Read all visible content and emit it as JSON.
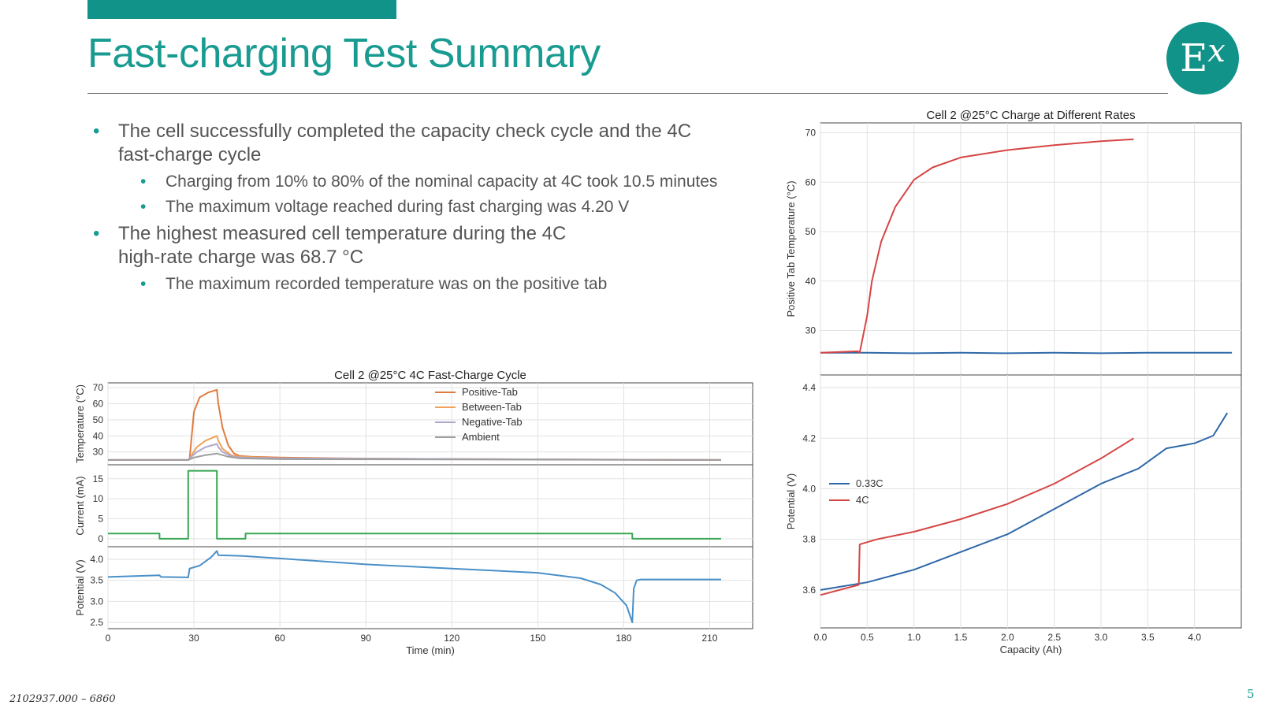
{
  "header": {
    "title": "Fast-charging Test Summary"
  },
  "logo": {
    "main": "E",
    "sup": "x"
  },
  "bullets": [
    {
      "text": "The cell successfully completed the capacity check cycle and the 4C fast-charge cycle"
    },
    {
      "text": "Charging from 10% to 80% of the nominal capacity at 4C took 10.5 minutes"
    },
    {
      "text": "The maximum voltage reached during fast charging was 4.20 V"
    },
    {
      "text": "The highest measured cell temperature during the 4C high-rate charge was 68.7 °C"
    },
    {
      "text": "The maximum recorded temperature was on the positive tab"
    }
  ],
  "footer": {
    "doc_id": "2102937.000 – 6860",
    "page": "5"
  },
  "colors": {
    "accent": "#189b91",
    "positive_tab": "#e07b3f",
    "between_tab": "#f0a25a",
    "negative_tab": "#b0a8cc",
    "ambient": "#9e9e9e",
    "current": "#3aa655",
    "potential": "#4a90c8",
    "rate_033": "#2e68a8",
    "rate_4c": "#d64545"
  },
  "chart_data": [
    {
      "type": "line",
      "title": "Cell 2 @25°C 4C Fast-Charge Cycle",
      "xlabel": "Time (min)",
      "xlim": [
        0,
        225
      ],
      "xticks": [
        "0",
        "30",
        "60",
        "90",
        "120",
        "150",
        "180",
        "210"
      ],
      "panels": [
        {
          "ylabel": "Temperature (°C)",
          "ylim": [
            22,
            73
          ],
          "yticks": [
            "30",
            "40",
            "50",
            "60",
            "70"
          ],
          "legend": [
            "Positive-Tab",
            "Between-Tab",
            "Negative-Tab",
            "Ambient"
          ],
          "series": [
            {
              "name": "Positive-Tab",
              "x": [
                0,
                28,
                28.5,
                30,
                32,
                35,
                38,
                38.5,
                40,
                42,
                44,
                46,
                50,
                60,
                80,
                120,
                214
              ],
              "y": [
                25,
                25,
                26,
                55,
                64,
                67,
                68.7,
                60,
                45,
                34,
                29,
                27.5,
                27,
                26.5,
                26,
                25.5,
                25
              ]
            },
            {
              "name": "Between-Tab",
              "x": [
                0,
                28,
                28.5,
                31,
                34,
                38,
                38.5,
                40,
                43,
                46,
                60,
                214
              ],
              "y": [
                25,
                25,
                26,
                33,
                37,
                40,
                37,
                32,
                28,
                27,
                26,
                25
              ]
            },
            {
              "name": "Negative-Tab",
              "x": [
                0,
                28,
                28.5,
                31,
                34,
                38,
                38.5,
                40,
                43,
                46,
                60,
                214
              ],
              "y": [
                25,
                25,
                26,
                30,
                33,
                35,
                33,
                30,
                27.5,
                26.5,
                26,
                25
              ]
            },
            {
              "name": "Ambient",
              "x": [
                0,
                28,
                30,
                34,
                38,
                42,
                46,
                60,
                214
              ],
              "y": [
                25,
                25,
                26.5,
                28,
                29,
                27,
                26,
                25.5,
                25
              ]
            }
          ]
        },
        {
          "ylabel": "Current (mA)",
          "ylim": [
            -2,
            18.5
          ],
          "yticks": [
            "0",
            "5",
            "10",
            "15"
          ],
          "series": [
            {
              "name": "Current",
              "x": [
                0,
                18,
                18,
                28,
                28,
                38,
                38,
                48,
                48,
                183,
                183,
                214
              ],
              "y": [
                1.3,
                1.3,
                0,
                0,
                17,
                17,
                0,
                0,
                1.3,
                1.3,
                0,
                0
              ]
            }
          ]
        },
        {
          "ylabel": "Potential (V)",
          "ylim": [
            2.35,
            4.3
          ],
          "yticks": [
            "2.5",
            "3.0",
            "3.5",
            "4.0"
          ],
          "series": [
            {
              "name": "Potential",
              "x": [
                0,
                18,
                18.5,
                28,
                28.5,
                32,
                36,
                38,
                38.5,
                47,
                60,
                90,
                120,
                150,
                165,
                172,
                177,
                181,
                183,
                183.5,
                184.5,
                186,
                214
              ],
              "y": [
                3.58,
                3.62,
                3.58,
                3.57,
                3.78,
                3.85,
                4.05,
                4.2,
                4.1,
                4.08,
                4.02,
                3.88,
                3.78,
                3.68,
                3.55,
                3.4,
                3.2,
                2.9,
                2.5,
                3.3,
                3.5,
                3.52,
                3.52
              ]
            }
          ]
        }
      ]
    },
    {
      "type": "line",
      "title": "Cell 2 @25°C Charge at Different Rates",
      "xlabel": "Capacity (Ah)",
      "xlim": [
        0,
        4.5
      ],
      "xticks": [
        "0.0",
        "0.5",
        "1.0",
        "1.5",
        "2.0",
        "2.5",
        "3.0",
        "3.5",
        "4.0"
      ],
      "panels": [
        {
          "ylabel": "Positive Tab Temperature (°C)",
          "ylim": [
            21,
            72
          ],
          "yticks": [
            "30",
            "40",
            "50",
            "60",
            "70"
          ],
          "series": [
            {
              "name": "0.33C",
              "x": [
                0,
                0.5,
                1.0,
                1.5,
                2.0,
                2.5,
                3.0,
                3.5,
                4.0,
                4.4
              ],
              "y": [
                25.5,
                25.5,
                25.4,
                25.5,
                25.4,
                25.5,
                25.4,
                25.5,
                25.5,
                25.5
              ]
            },
            {
              "name": "4C",
              "x": [
                0,
                0.4,
                0.42,
                0.5,
                0.55,
                0.65,
                0.8,
                1.0,
                1.2,
                1.5,
                2.0,
                2.5,
                3.0,
                3.35
              ],
              "y": [
                25.5,
                25.8,
                25.5,
                33,
                40,
                48,
                55,
                60.5,
                63,
                65,
                66.5,
                67.5,
                68.3,
                68.7
              ]
            }
          ]
        },
        {
          "ylabel": "Potential (V)",
          "ylim": [
            3.45,
            4.45
          ],
          "yticks": [
            "3.6",
            "3.8",
            "4.0",
            "4.2",
            "4.4"
          ],
          "legend": [
            "0.33C",
            "4C"
          ],
          "series": [
            {
              "name": "0.33C",
              "x": [
                0,
                0.5,
                1.0,
                1.5,
                2.0,
                2.5,
                3.0,
                3.4,
                3.7,
                4.0,
                4.2,
                4.35
              ],
              "y": [
                3.6,
                3.63,
                3.68,
                3.75,
                3.82,
                3.92,
                4.02,
                4.08,
                4.16,
                4.18,
                4.21,
                4.3
              ]
            },
            {
              "name": "4C",
              "x": [
                0,
                0.41,
                0.42,
                0.6,
                1.0,
                1.5,
                2.0,
                2.5,
                3.0,
                3.35
              ],
              "y": [
                3.58,
                3.62,
                3.78,
                3.8,
                3.83,
                3.88,
                3.94,
                4.02,
                4.12,
                4.2
              ]
            }
          ]
        }
      ]
    }
  ]
}
